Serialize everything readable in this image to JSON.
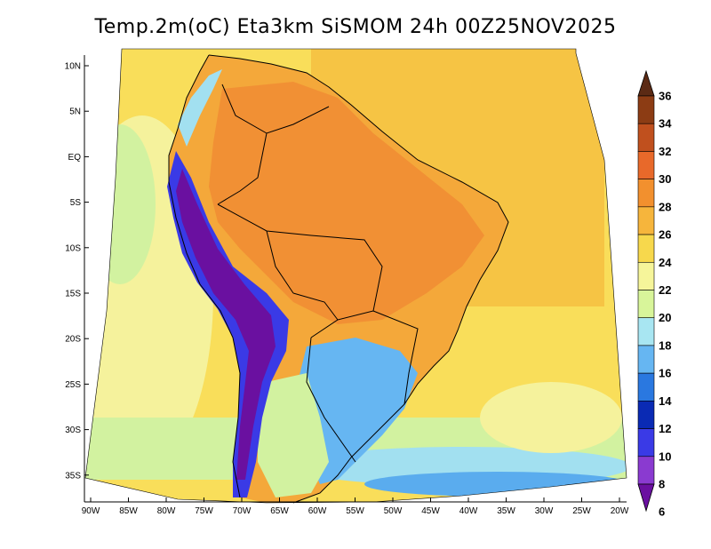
{
  "title": "Temp.2m(oC) Eta3km SiSMOM 24h 00Z25NOV2025",
  "axes": {
    "lat_ticks": [
      "10N",
      "5N",
      "EQ",
      "5S",
      "10S",
      "15S",
      "20S",
      "25S",
      "30S",
      "35S"
    ],
    "lon_ticks": [
      "90W",
      "85W",
      "80W",
      "75W",
      "70W",
      "65W",
      "60W",
      "55W",
      "50W",
      "45W",
      "40W",
      "35W",
      "30W",
      "25W",
      "20W"
    ]
  },
  "colorbar": {
    "labels": [
      "36",
      "34",
      "32",
      "30",
      "28",
      "26",
      "24",
      "22",
      "20",
      "18",
      "16",
      "14",
      "12",
      "10",
      "8",
      "6"
    ],
    "colors": [
      "#5b2a14",
      "#8c3c14",
      "#c0501e",
      "#e8692a",
      "#f2902e",
      "#f6b53c",
      "#f7d84c",
      "#f6f59a",
      "#d8f59a",
      "#a8e6f2",
      "#66b6f2",
      "#2a78e0",
      "#0a2ab4",
      "#3a3ae6",
      "#8a3ad0",
      "#6a10a0"
    ]
  },
  "map": {
    "colors": {
      "ocean_warm": "#f6c444",
      "ocean_mid": "#f9de5a",
      "ocean_pale": "#f5f29c",
      "ocean_cool": "#d2f2a0",
      "ocean_cold": "#a2e0f0",
      "ocean_colder": "#5aacee",
      "land_hot": "#f19034",
      "land_warm": "#f4a83a",
      "andes_cold": "#6a10a0",
      "andes_mid": "#3a3ae6",
      "south_cool": "#66b6f2"
    }
  }
}
